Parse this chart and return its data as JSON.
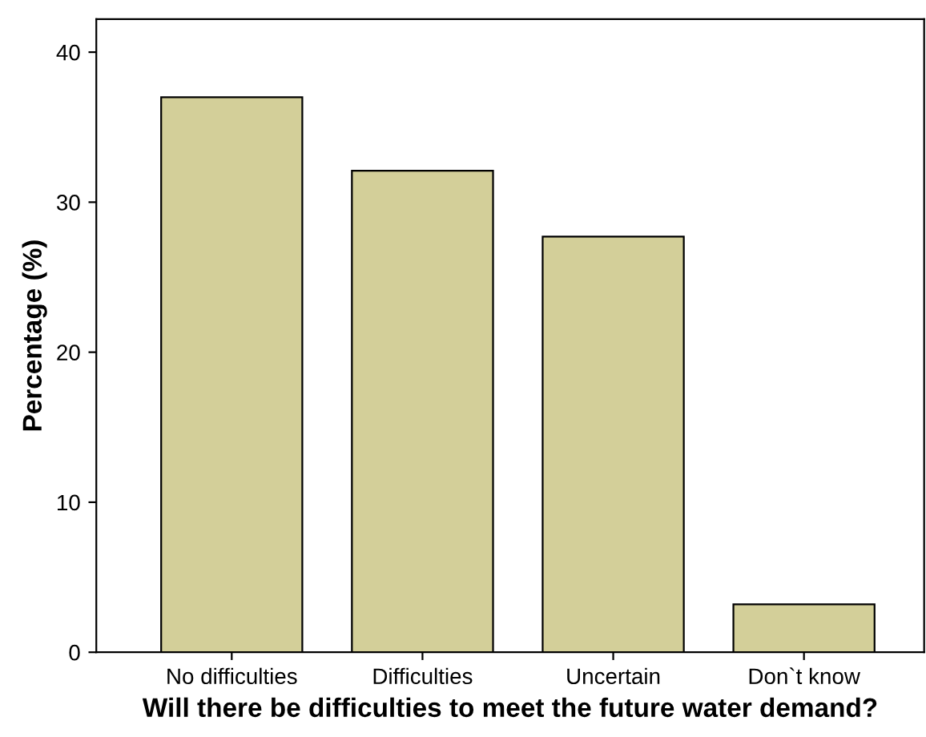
{
  "chart_data": {
    "type": "bar",
    "xlabel": "Will there be difficulties to meet the future water demand?",
    "ylabel": "Percentage (%)",
    "categories": [
      "No difficulties",
      "Difficulties",
      "Uncertain",
      "Don`t know"
    ],
    "values": [
      37.0,
      32.1,
      27.7,
      3.2
    ],
    "color": "#d3cf99",
    "ylim": [
      0,
      42.2
    ],
    "yticks": [
      0,
      10,
      20,
      30,
      40
    ],
    "grid": false,
    "legend": false
  }
}
